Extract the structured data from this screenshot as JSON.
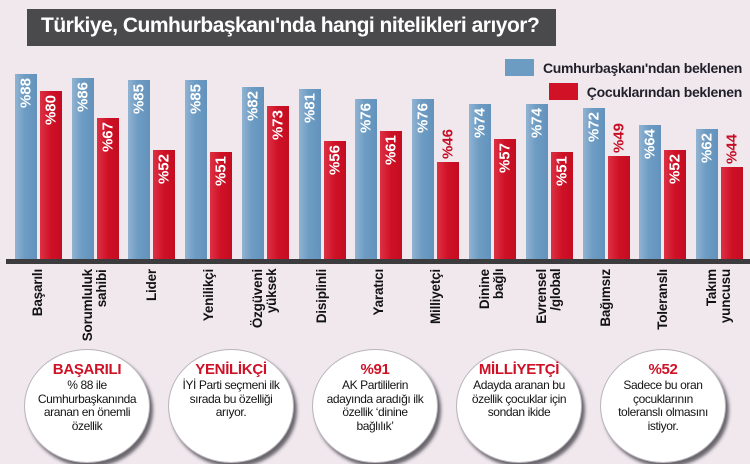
{
  "title": "Türkiye, Cumhurbaşkanı'nda hangi nitelikleri arıyor?",
  "colors": {
    "background": "#f1e8ee",
    "title_bar": "#4a494c",
    "president_blue": "#6d9cc3",
    "children_red": "#cf1126",
    "axis": "#3c3b3d",
    "callout_heading": "#cf1126"
  },
  "chart_data": {
    "type": "bar",
    "categories": [
      "Başarılı",
      "Sorumluluk\nsahibi",
      "Lider",
      "Yenilikçi",
      "Özgüveni\nyüksek",
      "Disiplinli",
      "Yaratıcı",
      "Milliyetçi",
      "Dinine\nbağlı",
      "Evrensel\n/global",
      "Bağımsız",
      "Toleranslı",
      "Takım\nyuncusu"
    ],
    "series": [
      {
        "name": "Cumhurbaşkanı'ndan beklenen",
        "color": "#6d9cc3",
        "values": [
          88,
          86,
          85,
          85,
          82,
          81,
          76,
          76,
          74,
          74,
          72,
          64,
          62
        ]
      },
      {
        "name": "Çocuklarından beklenen",
        "color": "#cf1126",
        "values": [
          80,
          67,
          52,
          51,
          73,
          56,
          61,
          46,
          57,
          51,
          49,
          52,
          44
        ]
      }
    ],
    "value_prefix": "%",
    "ylim": [
      0,
      91
    ],
    "grid": false,
    "legend_position": "top-right",
    "label_outside_below": 50,
    "bar_value_labels_rotated": true
  },
  "callouts": [
    {
      "heading": "BAŞARILI",
      "text": "% 88 ile Cumhurbaşkanında aranan en önemli özellik"
    },
    {
      "heading": "YENİLİKÇİ",
      "text": "İYİ Parti seçmeni ilk sırada bu özelliği arıyor."
    },
    {
      "heading": "%91",
      "text": "AK Partililerin adayında aradığı ilk özellik ‘dinine bağlılık’"
    },
    {
      "heading": "MİLLİYETÇİ",
      "text": "Adayda aranan bu özellik çocuklar için sondan ikide"
    },
    {
      "heading": "%52",
      "text": "Sadece bu oran çocuklarının toleranslı olmasını istiyor."
    }
  ]
}
